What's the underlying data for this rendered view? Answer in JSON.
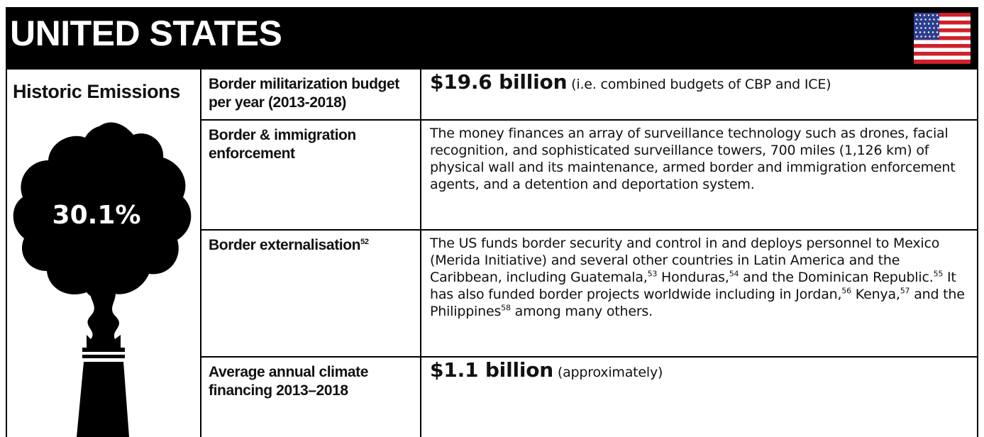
{
  "header": {
    "title": "UNITED STATES"
  },
  "side": {
    "title": "Historic Emissions",
    "value": "30.1%"
  },
  "table": {
    "rows": [
      {
        "label": [
          {
            "t": "Border militarization budget per year (2013-2018)"
          }
        ],
        "content": [
          {
            "b": "$19.6 billion"
          },
          {
            "t": " (i.e. combined budgets of CBP and ICE)"
          }
        ]
      },
      {
        "label": [
          {
            "t": "Border & immigration enforcement"
          }
        ],
        "content": [
          {
            "t": "The money finances an array of surveillance technology such as drones, facial recognition, and sophisticated surveillance towers, 700 miles (1,126 km) of physical wall and its maintenance, armed border and immigration enforcement agents, and a detention and deportation system."
          }
        ]
      },
      {
        "label": [
          {
            "t": "Border externalisation"
          },
          {
            "sup": "52"
          }
        ],
        "content": [
          {
            "t": "The US funds border security and control in and deploys personnel to Mexico (Merida Initiative) and several other countries in Latin America and the Caribbean, including Guatemala,"
          },
          {
            "sup": "53"
          },
          {
            "t": " Honduras,"
          },
          {
            "sup": "54"
          },
          {
            "t": " and the Dominican Republic."
          },
          {
            "sup": "55"
          },
          {
            "t": " It has also funded border projects worldwide including in Jordan,"
          },
          {
            "sup": "56"
          },
          {
            "t": " Kenya,"
          },
          {
            "sup": "57"
          },
          {
            "t": " and the Philippines"
          },
          {
            "sup": "58"
          },
          {
            "t": " among many others."
          }
        ]
      },
      {
        "label": [
          {
            "t": "Average annual climate financing 2013–2018"
          }
        ],
        "content": [
          {
            "b": "$1.1 billion"
          },
          {
            "t": " (approximately)"
          }
        ]
      }
    ]
  }
}
